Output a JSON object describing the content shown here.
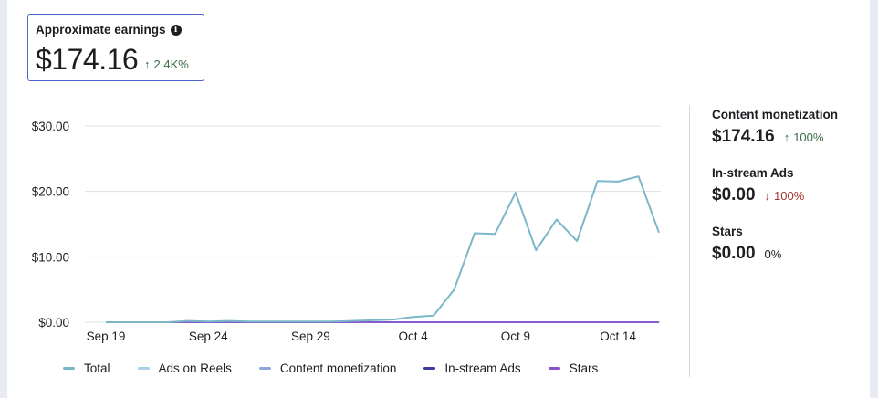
{
  "summary": {
    "title": "Approximate earnings",
    "info_icon": "info-icon",
    "value": "$174.16",
    "change_arrow": "↑",
    "change": "2.4K%"
  },
  "breakdown": [
    {
      "label": "Content monetization",
      "value": "$174.16",
      "arrow": "↑",
      "change": "100%",
      "trend": "up"
    },
    {
      "label": "In-stream Ads",
      "value": "$0.00",
      "arrow": "↓",
      "change": "100%",
      "trend": "down"
    },
    {
      "label": "Stars",
      "value": "$0.00",
      "arrow": "",
      "change": "0%",
      "trend": "neutral"
    }
  ],
  "colors": {
    "total": "#7bb7c9",
    "ads_on_reels": "#a6d4e6",
    "content_monetization": "#8fa5e0",
    "in_stream_ads": "#3c3a9e",
    "stars": "#8a4fd1",
    "grid": "#dddfe3",
    "up": "#3b6b4a",
    "down": "#a0372e"
  },
  "chart_data": {
    "type": "line",
    "title": "",
    "xlabel": "",
    "ylabel": "",
    "ylim": [
      0,
      30
    ],
    "yticks": [
      0,
      10,
      20,
      30
    ],
    "ytick_labels": [
      "$0.00",
      "$10.00",
      "$20.00",
      "$30.00"
    ],
    "x": [
      "Sep 19",
      "Sep 20",
      "Sep 21",
      "Sep 22",
      "Sep 23",
      "Sep 24",
      "Sep 25",
      "Sep 26",
      "Sep 27",
      "Sep 28",
      "Sep 29",
      "Sep 30",
      "Oct 1",
      "Oct 2",
      "Oct 3",
      "Oct 4",
      "Oct 5",
      "Oct 6",
      "Oct 7",
      "Oct 8",
      "Oct 9",
      "Oct 10",
      "Oct 11",
      "Oct 12",
      "Oct 13",
      "Oct 14",
      "Oct 15",
      "Oct 16"
    ],
    "xtick_labels": [
      "Sep 19",
      "Sep 24",
      "Sep 29",
      "Oct 4",
      "Oct 9",
      "Oct 14"
    ],
    "xtick_index": [
      0,
      5,
      10,
      15,
      20,
      25
    ],
    "series": [
      {
        "name": "Total",
        "color_key": "total",
        "values": [
          0,
          0,
          0,
          0,
          0.2,
          0.1,
          0.2,
          0.1,
          0.1,
          0.1,
          0.1,
          0.1,
          0.2,
          0.3,
          0.4,
          0.8,
          1.0,
          5.0,
          13.6,
          13.5,
          19.8,
          11.0,
          15.7,
          12.4,
          21.6,
          21.5,
          22.3,
          13.7
        ]
      },
      {
        "name": "Ads on Reels",
        "color_key": "ads_on_reels",
        "values": [
          0,
          0,
          0,
          0,
          0,
          0,
          0,
          0,
          0,
          0,
          0,
          0,
          0,
          0,
          0,
          0,
          0,
          0,
          0,
          0,
          0,
          0,
          0,
          0,
          0,
          0,
          0,
          0
        ]
      },
      {
        "name": "Content monetization",
        "color_key": "content_monetization",
        "values": [
          0,
          0,
          0,
          0,
          0,
          0,
          0,
          0,
          0,
          0,
          0,
          0,
          0,
          0,
          0,
          0,
          0,
          0,
          0,
          0,
          0,
          0,
          0,
          0,
          0,
          0,
          0,
          0
        ]
      },
      {
        "name": "In-stream Ads",
        "color_key": "in_stream_ads",
        "values": [
          0,
          0,
          0,
          0,
          0,
          0,
          0,
          0,
          0,
          0,
          0,
          0,
          0,
          0,
          0,
          0,
          0,
          0,
          0,
          0,
          0,
          0,
          0,
          0,
          0,
          0,
          0,
          0
        ]
      },
      {
        "name": "Stars",
        "color_key": "stars",
        "values": [
          0,
          0,
          0,
          0,
          0,
          0,
          0,
          0,
          0,
          0,
          0,
          0,
          0,
          0,
          0,
          0,
          0,
          0,
          0,
          0,
          0,
          0,
          0,
          0,
          0,
          0,
          0,
          0
        ]
      }
    ],
    "legend": [
      "Total",
      "Ads on Reels",
      "Content monetization",
      "In-stream Ads",
      "Stars"
    ],
    "legend_position": "bottom"
  }
}
